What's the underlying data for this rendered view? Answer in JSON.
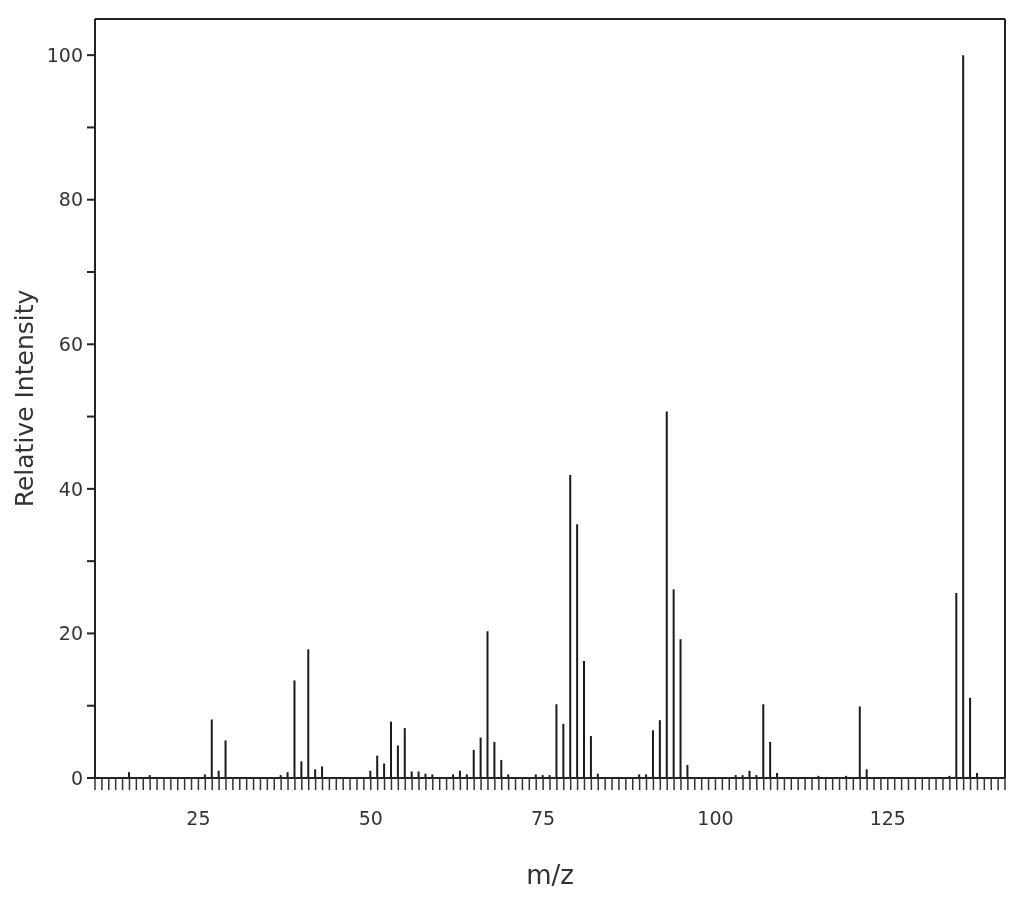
{
  "chart_data": {
    "type": "bar",
    "xlabel": "m/z",
    "ylabel": "Relative Intensity",
    "x": [
      15,
      18,
      26,
      27,
      28,
      29,
      37,
      38,
      39,
      40,
      41,
      42,
      43,
      50,
      51,
      52,
      53,
      54,
      55,
      56,
      57,
      58,
      59,
      62,
      63,
      64,
      65,
      66,
      67,
      68,
      69,
      70,
      74,
      75,
      76,
      77,
      78,
      79,
      80,
      81,
      82,
      83,
      89,
      90,
      91,
      92,
      93,
      94,
      95,
      96,
      103,
      104,
      105,
      106,
      107,
      108,
      109,
      115,
      119,
      121,
      122,
      134,
      135,
      136,
      137,
      138
    ],
    "values": [
      0.8,
      0.4,
      0.5,
      8.1,
      1.0,
      5.2,
      0.4,
      0.8,
      13.5,
      2.3,
      17.8,
      1.2,
      1.6,
      1.0,
      3.1,
      2.0,
      7.8,
      4.5,
      6.9,
      0.9,
      0.9,
      0.6,
      0.5,
      0.5,
      1.0,
      0.5,
      3.9,
      5.6,
      20.3,
      5.0,
      2.5,
      0.5,
      0.5,
      0.4,
      0.4,
      10.2,
      7.5,
      41.9,
      35.1,
      16.2,
      5.8,
      0.6,
      0.5,
      0.5,
      6.6,
      8.0,
      50.7,
      26.1,
      19.2,
      1.8,
      0.4,
      0.4,
      1.0,
      0.4,
      10.2,
      5.0,
      0.7,
      0.3,
      0.3,
      9.9,
      1.2,
      0.3,
      25.6,
      100,
      11.1,
      0.7
    ],
    "color": "#1a1a1a",
    "xlim": [
      10,
      142
    ],
    "xticks": [
      {
        "value": 10,
        "label": null
      },
      {
        "value": 11,
        "label": null
      },
      {
        "value": 12,
        "label": null
      },
      {
        "value": 13,
        "label": null
      },
      {
        "value": 14,
        "label": null
      },
      {
        "value": 15,
        "label": null
      },
      {
        "value": 16,
        "label": null
      },
      {
        "value": 17,
        "label": null
      },
      {
        "value": 18,
        "label": null
      },
      {
        "value": 19,
        "label": null
      },
      {
        "value": 20,
        "label": null
      },
      {
        "value": 21,
        "label": null
      },
      {
        "value": 22,
        "label": null
      },
      {
        "value": 23,
        "label": null
      },
      {
        "value": 24,
        "label": null
      },
      25,
      {
        "value": 26,
        "label": null
      },
      {
        "value": 27,
        "label": null
      },
      {
        "value": 28,
        "label": null
      },
      {
        "value": 29,
        "label": null
      },
      {
        "value": 30,
        "label": null
      },
      {
        "value": 31,
        "label": null
      },
      {
        "value": 32,
        "label": null
      },
      {
        "value": 33,
        "label": null
      },
      {
        "value": 34,
        "label": null
      },
      {
        "value": 35,
        "label": null
      },
      {
        "value": 36,
        "label": null
      },
      {
        "value": 37,
        "label": null
      },
      {
        "value": 38,
        "label": null
      },
      {
        "value": 39,
        "label": null
      },
      {
        "value": 40,
        "label": null
      },
      {
        "value": 41,
        "label": null
      },
      {
        "value": 42,
        "label": null
      },
      {
        "value": 43,
        "label": null
      },
      {
        "value": 44,
        "label": null
      },
      {
        "value": 45,
        "label": null
      },
      {
        "value": 46,
        "label": null
      },
      {
        "value": 47,
        "label": null
      },
      {
        "value": 48,
        "label": null
      },
      {
        "value": 49,
        "label": null
      },
      50,
      {
        "value": 51,
        "label": null
      },
      {
        "value": 52,
        "label": null
      },
      {
        "value": 53,
        "label": null
      },
      {
        "value": 54,
        "label": null
      },
      {
        "value": 55,
        "label": null
      },
      {
        "value": 56,
        "label": null
      },
      {
        "value": 57,
        "label": null
      },
      {
        "value": 58,
        "label": null
      },
      {
        "value": 59,
        "label": null
      },
      {
        "value": 60,
        "label": null
      },
      {
        "value": 61,
        "label": null
      },
      {
        "value": 62,
        "label": null
      },
      {
        "value": 63,
        "label": null
      },
      {
        "value": 64,
        "label": null
      },
      {
        "value": 65,
        "label": null
      },
      {
        "value": 66,
        "label": null
      },
      {
        "value": 67,
        "label": null
      },
      {
        "value": 68,
        "label": null
      },
      {
        "value": 69,
        "label": null
      },
      {
        "value": 70,
        "label": null
      },
      {
        "value": 71,
        "label": null
      },
      {
        "value": 72,
        "label": null
      },
      {
        "value": 73,
        "label": null
      },
      {
        "value": 74,
        "label": null
      },
      75,
      {
        "value": 76,
        "label": null
      },
      {
        "value": 77,
        "label": null
      },
      {
        "value": 78,
        "label": null
      },
      {
        "value": 79,
        "label": null
      },
      {
        "value": 80,
        "label": null
      },
      {
        "value": 81,
        "label": null
      },
      {
        "value": 82,
        "label": null
      },
      {
        "value": 83,
        "label": null
      },
      {
        "value": 84,
        "label": null
      },
      {
        "value": 85,
        "label": null
      },
      {
        "value": 86,
        "label": null
      },
      {
        "value": 87,
        "label": null
      },
      {
        "value": 88,
        "label": null
      },
      {
        "value": 89,
        "label": null
      },
      {
        "value": 90,
        "label": null
      },
      {
        "value": 91,
        "label": null
      },
      {
        "value": 92,
        "label": null
      },
      {
        "value": 93,
        "label": null
      },
      {
        "value": 94,
        "label": null
      },
      {
        "value": 95,
        "label": null
      },
      {
        "value": 96,
        "label": null
      },
      {
        "value": 97,
        "label": null
      },
      {
        "value": 98,
        "label": null
      },
      {
        "value": 99,
        "label": null
      },
      100,
      {
        "value": 101,
        "label": null
      },
      {
        "value": 102,
        "label": null
      },
      {
        "value": 103,
        "label": null
      },
      {
        "value": 104,
        "label": null
      },
      {
        "value": 105,
        "label": null
      },
      {
        "value": 106,
        "label": null
      },
      {
        "value": 107,
        "label": null
      },
      {
        "value": 108,
        "label": null
      },
      {
        "value": 109,
        "label": null
      },
      {
        "value": 110,
        "label": null
      },
      {
        "value": 111,
        "label": null
      },
      {
        "value": 112,
        "label": null
      },
      {
        "value": 113,
        "label": null
      },
      {
        "value": 114,
        "label": null
      },
      {
        "value": 115,
        "label": null
      },
      {
        "value": 116,
        "label": null
      },
      {
        "value": 117,
        "label": null
      },
      {
        "value": 118,
        "label": null
      },
      {
        "value": 119,
        "label": null
      },
      {
        "value": 120,
        "label": null
      },
      {
        "value": 121,
        "label": null
      },
      {
        "value": 122,
        "label": null
      },
      {
        "value": 123,
        "label": null
      },
      {
        "value": 124,
        "label": null
      },
      125,
      {
        "value": 126,
        "label": null
      },
      {
        "value": 127,
        "label": null
      },
      {
        "value": 128,
        "label": null
      },
      {
        "value": 129,
        "label": null
      },
      {
        "value": 130,
        "label": null
      },
      {
        "value": 131,
        "label": null
      },
      {
        "value": 132,
        "label": null
      },
      {
        "value": 133,
        "label": null
      },
      {
        "value": 134,
        "label": null
      },
      {
        "value": 135,
        "label": null
      },
      {
        "value": 136,
        "label": null
      },
      {
        "value": 137,
        "label": null
      },
      {
        "value": 138,
        "label": null
      },
      {
        "value": 139,
        "label": null
      },
      {
        "value": 140,
        "label": null
      },
      {
        "value": 141,
        "label": null
      },
      {
        "value": 142,
        "label": null
      }
    ],
    "ylim": [
      0,
      105
    ],
    "yticks": [
      0,
      {
        "value": 10,
        "label": null
      },
      20,
      {
        "value": 30,
        "label": null
      },
      40,
      {
        "value": 50,
        "label": null
      },
      60,
      {
        "value": 70,
        "label": null
      },
      80,
      {
        "value": 90,
        "label": null
      },
      100
    ]
  }
}
